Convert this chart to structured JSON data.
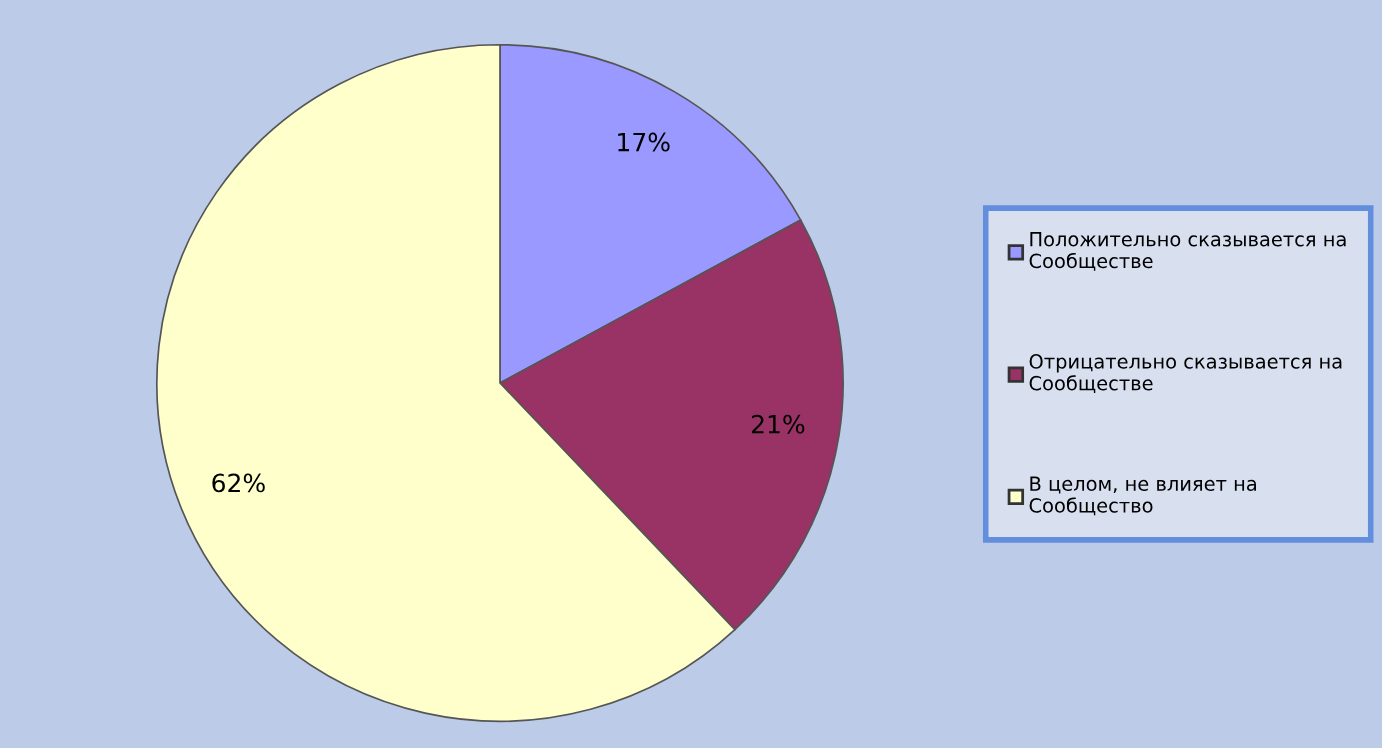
{
  "chart_data": {
    "type": "pie",
    "categories": [
      "Положительно сказывается на Сообществе",
      "Отрицательно сказывается на Сообществе",
      "В целом, не влияет на Сообщество"
    ],
    "values": [
      17,
      21,
      62
    ],
    "colors": [
      "#9999ff",
      "#993366",
      "#ffffcc"
    ],
    "value_labels": [
      "17%",
      "21%",
      "62%"
    ],
    "legend": "right"
  }
}
